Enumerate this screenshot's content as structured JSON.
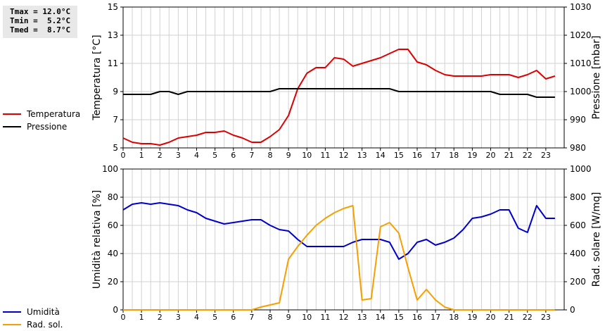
{
  "stats": {
    "tmax": "Tmax = 12.0°C",
    "tmin": "Tmin =  5.2°C",
    "tmed": "Tmed =  8.7°C"
  },
  "colors": {
    "temperature": "#dd0000",
    "pressure": "#000000",
    "humidity": "#0000cc",
    "radiation": "#f5a000"
  },
  "chart_data": [
    {
      "type": "line",
      "ylabel": "Temperatura [°C]",
      "y2label": "Pressione [mbar]",
      "ylim": [
        5,
        15
      ],
      "y2lim": [
        980,
        1030
      ],
      "xlim": [
        0,
        24
      ],
      "yticks": [
        5,
        7,
        9,
        11,
        13,
        15
      ],
      "y2ticks": [
        980,
        990,
        1000,
        1010,
        1020,
        1030
      ],
      "xticks": [
        0,
        1,
        2,
        3,
        4,
        5,
        6,
        7,
        8,
        9,
        10,
        11,
        12,
        13,
        14,
        15,
        16,
        17,
        18,
        19,
        20,
        21,
        22,
        23
      ],
      "grid": true,
      "legend_position": "left",
      "series": [
        {
          "name": "Temperatura",
          "axis": "left",
          "color": "#dd0000",
          "x": [
            0,
            0.5,
            1,
            1.5,
            2,
            2.5,
            3,
            3.5,
            4,
            4.5,
            5,
            5.5,
            6,
            6.5,
            7,
            7.5,
            8,
            8.5,
            9,
            9.5,
            10,
            10.5,
            11,
            11.5,
            12,
            12.5,
            13,
            13.5,
            14,
            14.5,
            15,
            15.5,
            16,
            16.5,
            17,
            17.5,
            18,
            18.5,
            19,
            19.5,
            20,
            20.5,
            21,
            21.5,
            22,
            22.5,
            23,
            23.5
          ],
          "values": [
            5.7,
            5.4,
            5.3,
            5.3,
            5.2,
            5.4,
            5.7,
            5.8,
            5.9,
            6.1,
            6.1,
            6.2,
            5.9,
            5.7,
            5.4,
            5.4,
            5.8,
            6.3,
            7.3,
            9.2,
            10.3,
            10.7,
            10.7,
            11.4,
            11.3,
            10.8,
            11.0,
            11.2,
            11.4,
            11.7,
            12.0,
            12.0,
            11.1,
            10.9,
            10.5,
            10.2,
            10.1,
            10.1,
            10.1,
            10.1,
            10.2,
            10.2,
            10.2,
            10.0,
            10.2,
            10.5,
            9.9,
            10.1
          ]
        },
        {
          "name": "Pressione",
          "axis": "right",
          "color": "#000000",
          "x": [
            0,
            1.5,
            2,
            2.5,
            3,
            3.5,
            4,
            8,
            8.5,
            14.5,
            15,
            20,
            20.5,
            22,
            22.5,
            23.5
          ],
          "values": [
            999,
            999,
            1000,
            1000,
            999,
            1000,
            1000,
            1000,
            1001,
            1001,
            1000,
            1000,
            999,
            999,
            998,
            998
          ]
        }
      ]
    },
    {
      "type": "line",
      "ylabel": "Umidità relativa [%]",
      "y2label": "Rad. solare [W/mq]",
      "ylim": [
        0,
        100
      ],
      "y2lim": [
        0,
        1000
      ],
      "xlim": [
        0,
        24
      ],
      "yticks": [
        0,
        20,
        40,
        60,
        80,
        100
      ],
      "y2ticks": [
        0,
        200,
        400,
        600,
        800,
        1000
      ],
      "xticks": [
        0,
        1,
        2,
        3,
        4,
        5,
        6,
        7,
        8,
        9,
        10,
        11,
        12,
        13,
        14,
        15,
        16,
        17,
        18,
        19,
        20,
        21,
        22,
        23
      ],
      "grid": true,
      "legend_position": "left",
      "series": [
        {
          "name": "Umidità",
          "axis": "left",
          "color": "#0000cc",
          "x": [
            0,
            0.5,
            1,
            1.5,
            2,
            2.5,
            3,
            3.5,
            4,
            4.5,
            5,
            5.5,
            6,
            6.5,
            7,
            7.5,
            8,
            8.5,
            9,
            9.5,
            10,
            10.5,
            11,
            11.5,
            12,
            12.5,
            13,
            13.5,
            14,
            14.5,
            15,
            15.5,
            16,
            16.5,
            17,
            17.5,
            18,
            18.5,
            19,
            19.5,
            20,
            20.5,
            21,
            21.5,
            22,
            22.5,
            23,
            23.5
          ],
          "values": [
            71,
            75,
            76,
            75,
            76,
            75,
            74,
            71,
            69,
            65,
            63,
            61,
            62,
            63,
            64,
            64,
            60,
            57,
            56,
            50,
            45,
            45,
            45,
            45,
            45,
            48,
            50,
            50,
            50,
            48,
            36,
            40,
            48,
            50,
            46,
            48,
            51,
            57,
            65,
            66,
            68,
            71,
            71,
            58,
            55,
            74,
            65,
            65
          ]
        },
        {
          "name": "Rad. sol.",
          "axis": "right",
          "color": "#f5a000",
          "x": [
            0,
            7,
            7.5,
            8,
            8.5,
            9,
            9.5,
            10,
            10.5,
            11,
            11.5,
            12,
            12.5,
            13,
            13.5,
            14,
            14.5,
            15,
            15.5,
            16,
            16.5,
            17,
            17.5,
            18,
            23.5
          ],
          "values": [
            0,
            0,
            20,
            35,
            50,
            360,
            450,
            530,
            600,
            650,
            690,
            720,
            740,
            70,
            80,
            590,
            620,
            545,
            300,
            70,
            145,
            70,
            20,
            0,
            0
          ]
        }
      ]
    }
  ]
}
